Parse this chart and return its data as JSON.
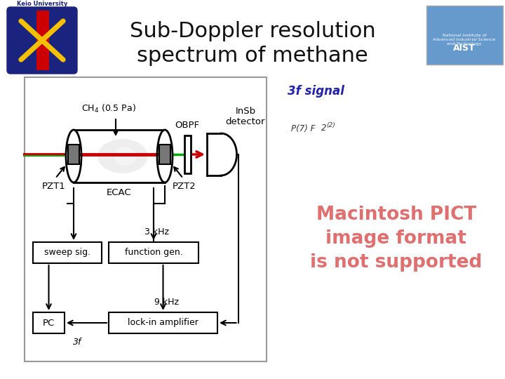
{
  "title_line1": "Sub-Doppler resolution",
  "title_line2": "spectrum of methane",
  "title_fontsize": 22,
  "title_color": "#111111",
  "signal_label": "3f signal",
  "signal_color": "#2222aa",
  "signal_fontsize": 12,
  "ch4_label": "CH$_4$ (0.5 Pa)",
  "obpf_label": "OBPF",
  "insb_label": "InSb\ndetector",
  "ecac_label": "ECAC",
  "pzt1_label": "PZT1",
  "pzt2_label": "PZT2",
  "freq1_label": "3 kHz",
  "freq2_label": "9 kHz",
  "sweep_label": "sweep sig.",
  "funcgen_label": "function gen.",
  "lockin_label": "lock-in amplifier",
  "pc_label": "PC",
  "threef_label": "3f",
  "red_arrow_color": "#cc0000",
  "green_beam_color": "#cc0000",
  "pict_text": "Macintosh PICT\nimage format\nis not supported",
  "pict_color": "#e07070",
  "p7f2_label": "P(7) F",
  "p7f2_sub": "2",
  "p7f2_sup": "(2)"
}
